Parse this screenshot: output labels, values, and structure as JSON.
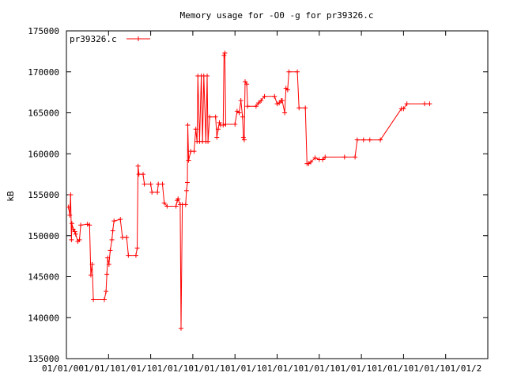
{
  "chart_data": {
    "type": "line",
    "title": "Memory usage for -O0 -g for pr39326.c",
    "xlabel": "",
    "ylabel": "kB",
    "ylim": [
      135000,
      175000
    ],
    "yticks": [
      135000,
      140000,
      145000,
      150000,
      155000,
      160000,
      165000,
      170000,
      175000
    ],
    "xlim": [
      0,
      1
    ],
    "xticks": [
      0,
      0.1,
      0.2,
      0.3,
      0.4,
      0.5,
      0.6,
      0.7,
      0.8,
      0.9,
      1.0
    ],
    "xtick_labels": [
      "01/01",
      "00:01/01",
      "01/01",
      "01/01",
      "01/01",
      "01/01",
      "01/01",
      "01/01",
      "01/01",
      "01/01",
      "01/2"
    ],
    "xtick_label_display": "01/01/001/01/101/01/101/01/101/01/101/01/101/01/101/01/101/01/101/01/101/01/101/01/2",
    "legend": {
      "position": "top-left"
    },
    "grid": false,
    "colors": {
      "series": "#ff0000",
      "axis": "#000000",
      "background": "#ffffff"
    },
    "series": [
      {
        "name": "pr39326.c",
        "points": [
          [
            0.005,
            153500
          ],
          [
            0.008,
            152500
          ],
          [
            0.01,
            155000
          ],
          [
            0.012,
            149500
          ],
          [
            0.013,
            151500
          ],
          [
            0.016,
            150800
          ],
          [
            0.02,
            150500
          ],
          [
            0.022,
            150200
          ],
          [
            0.027,
            149300
          ],
          [
            0.031,
            149500
          ],
          [
            0.034,
            151300
          ],
          [
            0.05,
            151400
          ],
          [
            0.055,
            151300
          ],
          [
            0.058,
            145200
          ],
          [
            0.061,
            146500
          ],
          [
            0.064,
            142200
          ],
          [
            0.09,
            142200
          ],
          [
            0.094,
            143200
          ],
          [
            0.096,
            145300
          ],
          [
            0.098,
            147300
          ],
          [
            0.101,
            146500
          ],
          [
            0.104,
            148200
          ],
          [
            0.108,
            149500
          ],
          [
            0.11,
            150600
          ],
          [
            0.113,
            151800
          ],
          [
            0.128,
            152000
          ],
          [
            0.133,
            149800
          ],
          [
            0.143,
            149800
          ],
          [
            0.147,
            147600
          ],
          [
            0.165,
            147600
          ],
          [
            0.168,
            148500
          ],
          [
            0.17,
            158500
          ],
          [
            0.172,
            157500
          ],
          [
            0.182,
            157500
          ],
          [
            0.185,
            156300
          ],
          [
            0.2,
            156300
          ],
          [
            0.203,
            155300
          ],
          [
            0.216,
            155300
          ],
          [
            0.218,
            156300
          ],
          [
            0.228,
            156300
          ],
          [
            0.232,
            154000
          ],
          [
            0.239,
            153600
          ],
          [
            0.26,
            153600
          ],
          [
            0.263,
            154300
          ],
          [
            0.265,
            154500
          ],
          [
            0.27,
            153800
          ],
          [
            0.272,
            138700
          ],
          [
            0.275,
            153800
          ],
          [
            0.283,
            153800
          ],
          [
            0.285,
            155500
          ],
          [
            0.287,
            156500
          ],
          [
            0.288,
            163500
          ],
          [
            0.29,
            159200
          ],
          [
            0.295,
            160300
          ],
          [
            0.303,
            160300
          ],
          [
            0.307,
            163000
          ],
          [
            0.31,
            161500
          ],
          [
            0.312,
            169500
          ],
          [
            0.316,
            161500
          ],
          [
            0.32,
            169500
          ],
          [
            0.323,
            161500
          ],
          [
            0.326,
            169500
          ],
          [
            0.331,
            161500
          ],
          [
            0.334,
            169500
          ],
          [
            0.336,
            161500
          ],
          [
            0.34,
            164500
          ],
          [
            0.354,
            164500
          ],
          [
            0.357,
            162000
          ],
          [
            0.36,
            163000
          ],
          [
            0.363,
            163800
          ],
          [
            0.366,
            163500
          ],
          [
            0.372,
            163500
          ],
          [
            0.374,
            172000
          ],
          [
            0.376,
            172300
          ],
          [
            0.378,
            163600
          ],
          [
            0.4,
            163600
          ],
          [
            0.405,
            165200
          ],
          [
            0.41,
            165000
          ],
          [
            0.414,
            166500
          ],
          [
            0.418,
            164500
          ],
          [
            0.42,
            162000
          ],
          [
            0.422,
            161700
          ],
          [
            0.424,
            168800
          ],
          [
            0.428,
            168500
          ],
          [
            0.43,
            165800
          ],
          [
            0.45,
            165800
          ],
          [
            0.456,
            166200
          ],
          [
            0.462,
            166500
          ],
          [
            0.47,
            167000
          ],
          [
            0.494,
            167000
          ],
          [
            0.5,
            166100
          ],
          [
            0.505,
            166200
          ],
          [
            0.51,
            166500
          ],
          [
            0.512,
            166500
          ],
          [
            0.518,
            165000
          ],
          [
            0.521,
            168000
          ],
          [
            0.525,
            167800
          ],
          [
            0.528,
            170000
          ],
          [
            0.548,
            170000
          ],
          [
            0.552,
            165600
          ],
          [
            0.567,
            165600
          ],
          [
            0.571,
            158800
          ],
          [
            0.575,
            158800
          ],
          [
            0.58,
            159000
          ],
          [
            0.59,
            159500
          ],
          [
            0.6,
            159300
          ],
          [
            0.608,
            159300
          ],
          [
            0.614,
            159600
          ],
          [
            0.66,
            159600
          ],
          [
            0.685,
            159600
          ],
          [
            0.69,
            161700
          ],
          [
            0.705,
            161700
          ],
          [
            0.72,
            161700
          ],
          [
            0.745,
            161700
          ],
          [
            0.795,
            165500
          ],
          [
            0.8,
            165500
          ],
          [
            0.808,
            166100
          ],
          [
            0.85,
            166100
          ],
          [
            0.862,
            166100
          ]
        ]
      }
    ]
  }
}
